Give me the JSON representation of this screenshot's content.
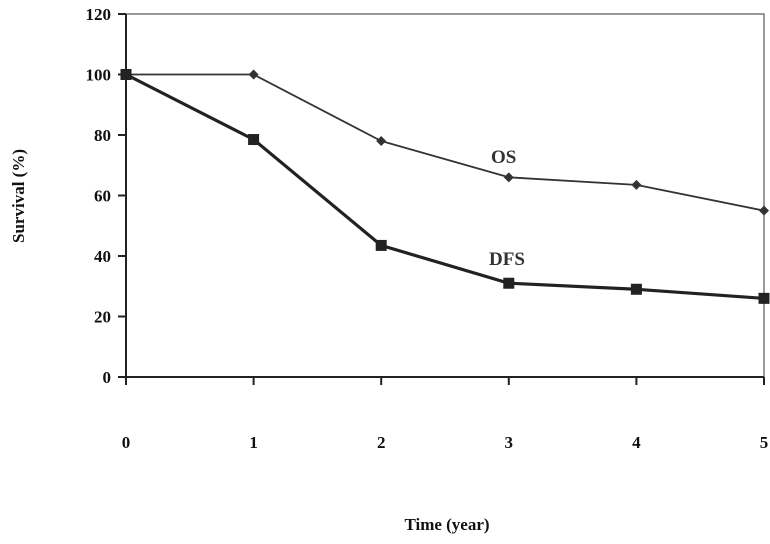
{
  "chart_data": {
    "type": "line",
    "title": "",
    "xlabel": "Time (year)",
    "ylabel": "Survival (%)",
    "x": [
      0,
      1,
      2,
      3,
      4,
      5
    ],
    "ylim": [
      0,
      120
    ],
    "yticks": [
      0,
      20,
      40,
      60,
      80,
      100,
      120
    ],
    "grid": false,
    "legend": "none",
    "series": [
      {
        "name": "OS",
        "values": [
          100,
          100,
          78,
          66,
          63.5,
          55
        ],
        "marker": "diamond",
        "color": "#333333"
      },
      {
        "name": "DFS",
        "values": [
          100,
          78.5,
          43.5,
          31,
          29,
          26
        ],
        "marker": "square",
        "color": "#222222"
      }
    ]
  }
}
